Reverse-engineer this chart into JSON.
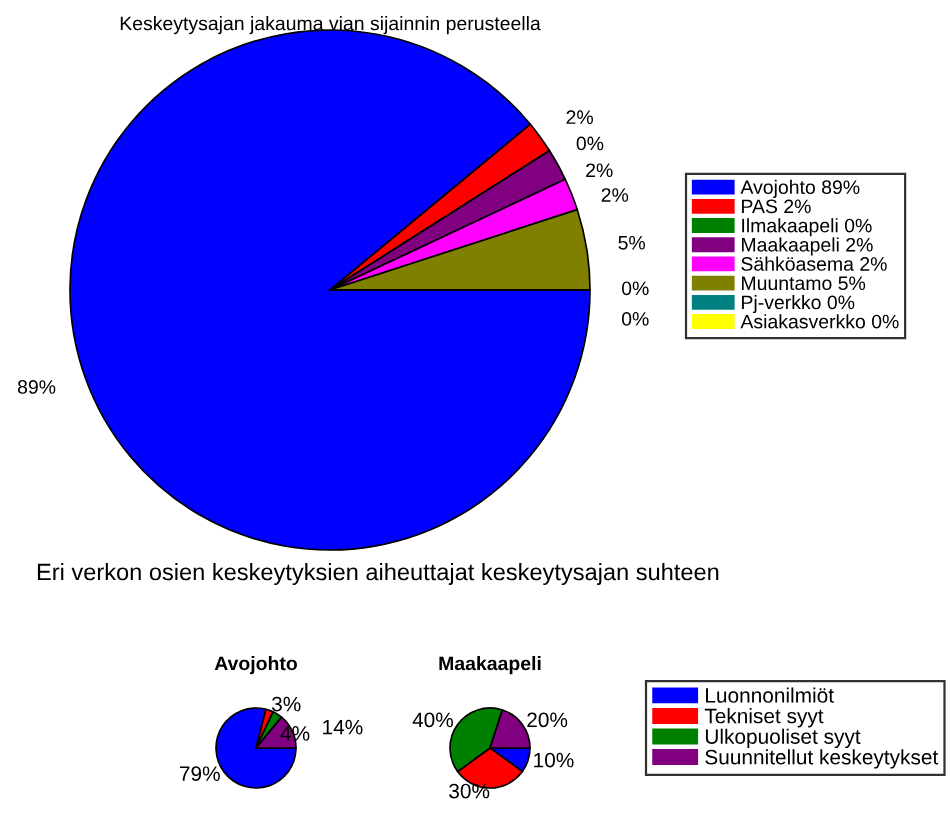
{
  "chart_data": [
    {
      "type": "pie",
      "title": "Keskeytysajan jakauma vian sijainnin perusteella",
      "categories": [
        "Avojohto 89%",
        "PAS 2%",
        "Ilmakaapeli 0%",
        "Maakaapeli 2%",
        "Sähköasema 2%",
        "Muuntamo 5%",
        "Pj-verkko 0%",
        "Asiakasverkko 0%"
      ],
      "values": [
        89,
        2,
        0,
        2,
        2,
        5,
        0,
        0
      ],
      "value_labels": [
        "89%",
        "2%",
        "0%",
        "2%",
        "2%",
        "5%",
        "0%",
        "0%"
      ],
      "colors": [
        "#0000ff",
        "#ff0000",
        "#008000",
        "#800080",
        "#ff00ff",
        "#808000",
        "#008080",
        "#ffff00"
      ],
      "legend": "right"
    },
    {
      "type": "pie",
      "title": "Avojohto",
      "annotations": [
        "Eri verkon osien keskeytyksien aiheuttajat keskeytysajan suhteen"
      ],
      "categories": [
        "Luonnonilmiöt",
        "Tekniset syyt",
        "Ulkopuoliset syyt",
        "Suunnitellut keskeytykset"
      ],
      "values": [
        79,
        3,
        4,
        14
      ],
      "value_labels": [
        "79%",
        "3%",
        "4%",
        "14%"
      ],
      "colors": [
        "#0000ff",
        "#ff0000",
        "#008000",
        "#800080"
      ],
      "legend": "right"
    },
    {
      "type": "pie",
      "title": "Maakaapeli",
      "categories": [
        null,
        null,
        null,
        null
      ],
      "values": [
        10,
        30,
        40,
        20
      ],
      "value_labels": [
        "10%",
        "30%",
        "40%",
        "20%"
      ],
      "colors": [
        "#0000ff",
        "#ff0000",
        "#008000",
        "#800080"
      ],
      "legend": false
    }
  ]
}
